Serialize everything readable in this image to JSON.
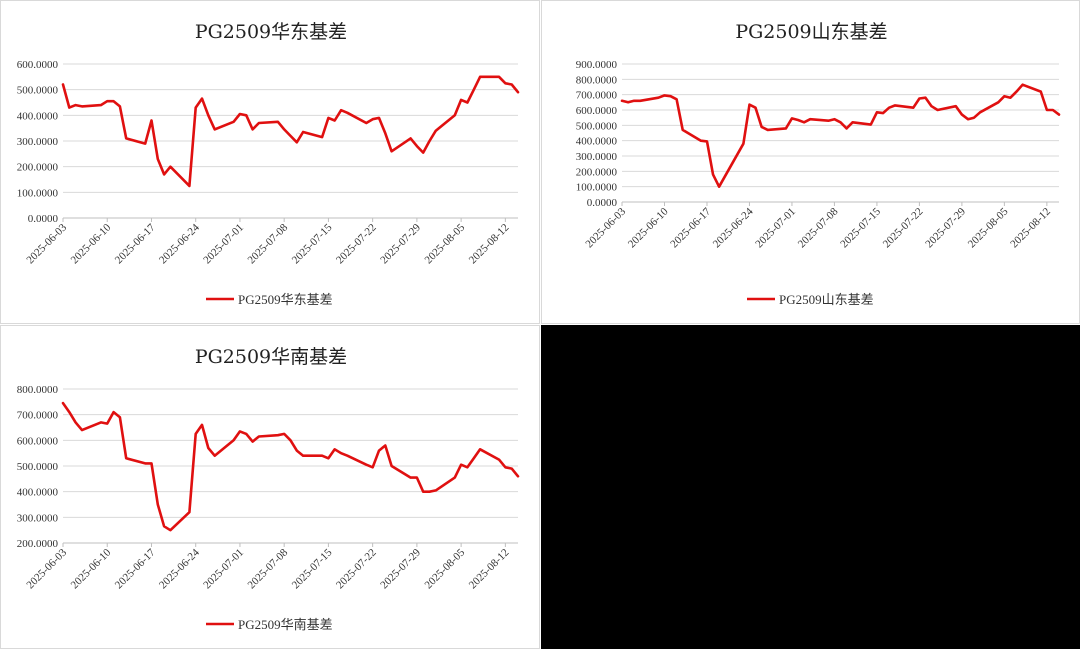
{
  "chart_data": [
    {
      "type": "line",
      "title": "PG2509华东基差",
      "series": [
        {
          "name": "PG2509华东基差",
          "color": "#e01010"
        }
      ],
      "ylim": [
        0,
        600
      ],
      "yticks": [
        "0.0000",
        "100.0000",
        "200.0000",
        "300.0000",
        "400.0000",
        "500.0000",
        "600.0000"
      ],
      "xticks": [
        "2025-06-03",
        "2025-06-10",
        "2025-06-17",
        "2025-06-24",
        "2025-07-01",
        "2025-07-08",
        "2025-07-15",
        "2025-07-22",
        "2025-07-29",
        "2025-08-05",
        "2025-08-12"
      ],
      "grid": true,
      "legend": "bottom",
      "points": [
        [
          "2025-06-03",
          520
        ],
        [
          "2025-06-04",
          430
        ],
        [
          "2025-06-05",
          440
        ],
        [
          "2025-06-06",
          435
        ],
        [
          "2025-06-09",
          440
        ],
        [
          "2025-06-10",
          455
        ],
        [
          "2025-06-11",
          455
        ],
        [
          "2025-06-12",
          435
        ],
        [
          "2025-06-13",
          310
        ],
        [
          "2025-06-16",
          290
        ],
        [
          "2025-06-17",
          380
        ],
        [
          "2025-06-18",
          230
        ],
        [
          "2025-06-19",
          170
        ],
        [
          "2025-06-20",
          200
        ],
        [
          "2025-06-23",
          125
        ],
        [
          "2025-06-24",
          430
        ],
        [
          "2025-06-25",
          465
        ],
        [
          "2025-06-26",
          400
        ],
        [
          "2025-06-27",
          345
        ],
        [
          "2025-06-30",
          375
        ],
        [
          "2025-07-01",
          405
        ],
        [
          "2025-07-02",
          400
        ],
        [
          "2025-07-03",
          345
        ],
        [
          "2025-07-04",
          370
        ],
        [
          "2025-07-07",
          375
        ],
        [
          "2025-07-08",
          345
        ],
        [
          "2025-07-09",
          320
        ],
        [
          "2025-07-10",
          295
        ],
        [
          "2025-07-11",
          335
        ],
        [
          "2025-07-14",
          315
        ],
        [
          "2025-07-15",
          390
        ],
        [
          "2025-07-16",
          380
        ],
        [
          "2025-07-17",
          420
        ],
        [
          "2025-07-18",
          410
        ],
        [
          "2025-07-21",
          370
        ],
        [
          "2025-07-22",
          385
        ],
        [
          "2025-07-23",
          390
        ],
        [
          "2025-07-24",
          330
        ],
        [
          "2025-07-25",
          260
        ],
        [
          "2025-07-28",
          310
        ],
        [
          "2025-07-29",
          280
        ],
        [
          "2025-07-30",
          255
        ],
        [
          "2025-07-31",
          300
        ],
        [
          "2025-08-01",
          340
        ],
        [
          "2025-08-04",
          400
        ],
        [
          "2025-08-05",
          460
        ],
        [
          "2025-08-06",
          450
        ],
        [
          "2025-08-07",
          500
        ],
        [
          "2025-08-08",
          550
        ],
        [
          "2025-08-11",
          550
        ],
        [
          "2025-08-12",
          525
        ],
        [
          "2025-08-13",
          520
        ],
        [
          "2025-08-14",
          490
        ]
      ]
    },
    {
      "type": "line",
      "title": "PG2509山东基差",
      "series": [
        {
          "name": "PG2509山东基差",
          "color": "#e01010"
        }
      ],
      "ylim": [
        0,
        900
      ],
      "yticks": [
        "0.0000",
        "100.0000",
        "200.0000",
        "300.0000",
        "400.0000",
        "500.0000",
        "600.0000",
        "700.0000",
        "800.0000",
        "900.0000"
      ],
      "xticks": [
        "2025-06-03",
        "2025-06-10",
        "2025-06-17",
        "2025-06-24",
        "2025-07-01",
        "2025-07-08",
        "2025-07-15",
        "2025-07-22",
        "2025-07-29",
        "2025-08-05",
        "2025-08-12"
      ],
      "grid": true,
      "legend": "bottom",
      "points": [
        [
          "2025-06-03",
          660
        ],
        [
          "2025-06-04",
          650
        ],
        [
          "2025-06-05",
          660
        ],
        [
          "2025-06-06",
          660
        ],
        [
          "2025-06-09",
          680
        ],
        [
          "2025-06-10",
          695
        ],
        [
          "2025-06-11",
          690
        ],
        [
          "2025-06-12",
          670
        ],
        [
          "2025-06-13",
          470
        ],
        [
          "2025-06-16",
          400
        ],
        [
          "2025-06-17",
          395
        ],
        [
          "2025-06-18",
          180
        ],
        [
          "2025-06-19",
          100
        ],
        [
          "2025-06-23",
          380
        ],
        [
          "2025-06-24",
          635
        ],
        [
          "2025-06-25",
          615
        ],
        [
          "2025-06-26",
          490
        ],
        [
          "2025-06-27",
          470
        ],
        [
          "2025-06-30",
          480
        ],
        [
          "2025-07-01",
          545
        ],
        [
          "2025-07-02",
          535
        ],
        [
          "2025-07-03",
          520
        ],
        [
          "2025-07-04",
          540
        ],
        [
          "2025-07-07",
          530
        ],
        [
          "2025-07-08",
          540
        ],
        [
          "2025-07-09",
          520
        ],
        [
          "2025-07-10",
          480
        ],
        [
          "2025-07-11",
          520
        ],
        [
          "2025-07-14",
          505
        ],
        [
          "2025-07-15",
          585
        ],
        [
          "2025-07-16",
          580
        ],
        [
          "2025-07-17",
          615
        ],
        [
          "2025-07-18",
          630
        ],
        [
          "2025-07-21",
          615
        ],
        [
          "2025-07-22",
          675
        ],
        [
          "2025-07-23",
          680
        ],
        [
          "2025-07-24",
          625
        ],
        [
          "2025-07-25",
          600
        ],
        [
          "2025-07-28",
          625
        ],
        [
          "2025-07-29",
          570
        ],
        [
          "2025-07-30",
          540
        ],
        [
          "2025-07-31",
          550
        ],
        [
          "2025-08-01",
          585
        ],
        [
          "2025-08-04",
          650
        ],
        [
          "2025-08-05",
          690
        ],
        [
          "2025-08-06",
          680
        ],
        [
          "2025-08-07",
          720
        ],
        [
          "2025-08-08",
          765
        ],
        [
          "2025-08-11",
          720
        ],
        [
          "2025-08-12",
          600
        ],
        [
          "2025-08-13",
          600
        ],
        [
          "2025-08-14",
          570
        ]
      ]
    },
    {
      "type": "line",
      "title": "PG2509华南基差",
      "series": [
        {
          "name": "PG2509华南基差",
          "color": "#e01010"
        }
      ],
      "ylim": [
        200,
        800
      ],
      "yticks": [
        "200.0000",
        "300.0000",
        "400.0000",
        "500.0000",
        "600.0000",
        "700.0000",
        "800.0000"
      ],
      "xticks": [
        "2025-06-03",
        "2025-06-10",
        "2025-06-17",
        "2025-06-24",
        "2025-07-01",
        "2025-07-08",
        "2025-07-15",
        "2025-07-22",
        "2025-07-29",
        "2025-08-05",
        "2025-08-12"
      ],
      "grid": true,
      "legend": "bottom",
      "points": [
        [
          "2025-06-03",
          745
        ],
        [
          "2025-06-04",
          710
        ],
        [
          "2025-06-05",
          670
        ],
        [
          "2025-06-06",
          640
        ],
        [
          "2025-06-09",
          670
        ],
        [
          "2025-06-10",
          665
        ],
        [
          "2025-06-11",
          710
        ],
        [
          "2025-06-12",
          690
        ],
        [
          "2025-06-13",
          530
        ],
        [
          "2025-06-16",
          510
        ],
        [
          "2025-06-17",
          510
        ],
        [
          "2025-06-18",
          350
        ],
        [
          "2025-06-19",
          265
        ],
        [
          "2025-06-20",
          250
        ],
        [
          "2025-06-23",
          320
        ],
        [
          "2025-06-24",
          625
        ],
        [
          "2025-06-25",
          660
        ],
        [
          "2025-06-26",
          570
        ],
        [
          "2025-06-27",
          540
        ],
        [
          "2025-06-30",
          600
        ],
        [
          "2025-07-01",
          635
        ],
        [
          "2025-07-02",
          625
        ],
        [
          "2025-07-03",
          595
        ],
        [
          "2025-07-04",
          615
        ],
        [
          "2025-07-07",
          620
        ],
        [
          "2025-07-08",
          625
        ],
        [
          "2025-07-09",
          600
        ],
        [
          "2025-07-10",
          560
        ],
        [
          "2025-07-11",
          540
        ],
        [
          "2025-07-14",
          540
        ],
        [
          "2025-07-15",
          530
        ],
        [
          "2025-07-16",
          565
        ],
        [
          "2025-07-17",
          550
        ],
        [
          "2025-07-18",
          540
        ],
        [
          "2025-07-21",
          505
        ],
        [
          "2025-07-22",
          495
        ],
        [
          "2025-07-23",
          560
        ],
        [
          "2025-07-24",
          580
        ],
        [
          "2025-07-25",
          500
        ],
        [
          "2025-07-28",
          455
        ],
        [
          "2025-07-29",
          455
        ],
        [
          "2025-07-30",
          400
        ],
        [
          "2025-07-31",
          400
        ],
        [
          "2025-08-01",
          405
        ],
        [
          "2025-08-04",
          455
        ],
        [
          "2025-08-05",
          505
        ],
        [
          "2025-08-06",
          495
        ],
        [
          "2025-08-07",
          530
        ],
        [
          "2025-08-08",
          565
        ],
        [
          "2025-08-11",
          525
        ],
        [
          "2025-08-12",
          495
        ],
        [
          "2025-08-13",
          490
        ],
        [
          "2025-08-14",
          460
        ]
      ]
    }
  ]
}
